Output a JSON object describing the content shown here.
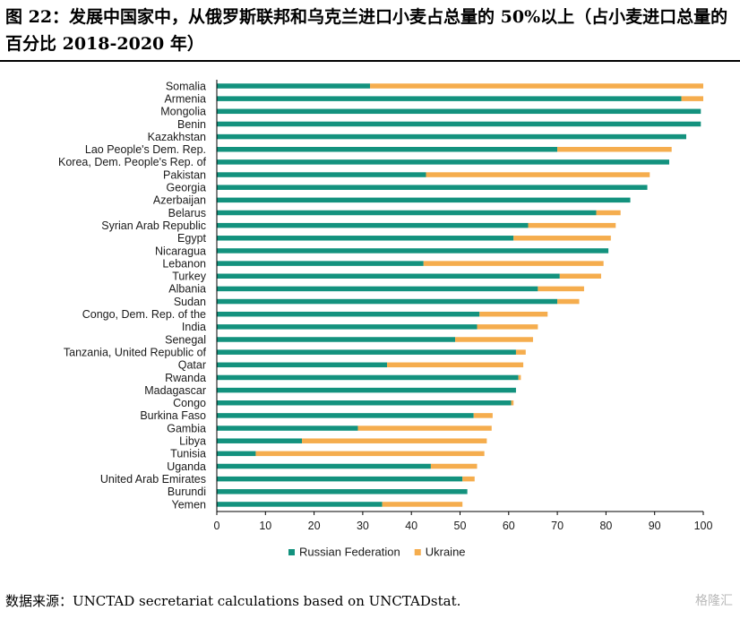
{
  "caption": "图 22：发展中国家中，从俄罗斯联邦和乌克兰进口小麦占总量的 50%以上（占小麦进口总量的百分比 2018-2020 年）",
  "source": "数据来源：UNCTAD secretariat calculations based on UNCTADstat.",
  "watermark": "格隆汇",
  "chart_data": {
    "type": "bar",
    "orientation": "horizontal",
    "stacked": true,
    "categories": [
      "Somalia",
      "Armenia",
      "Mongolia",
      "Benin",
      "Kazakhstan",
      "Lao People's Dem. Rep.",
      "Korea, Dem. People's Rep. of",
      "Pakistan",
      "Georgia",
      "Azerbaijan",
      "Belarus",
      "Syrian Arab Republic",
      "Egypt",
      "Nicaragua",
      "Lebanon",
      "Turkey",
      "Albania",
      "Sudan",
      "Congo, Dem. Rep. of the",
      "India",
      "Senegal",
      "Tanzania, United Republic of",
      "Qatar",
      "Rwanda",
      "Madagascar",
      "Congo",
      "Burkina Faso",
      "Gambia",
      "Libya",
      "Tunisia",
      "Uganda",
      "United Arab Emirates",
      "Burundi",
      "Yemen"
    ],
    "series": [
      {
        "name": "Russian Federation",
        "color": "#13927e",
        "values": [
          31.5,
          95.5,
          99.5,
          99.5,
          96.5,
          70,
          93,
          43,
          88.5,
          85,
          78,
          64,
          61,
          80.5,
          42.5,
          70.5,
          66,
          70,
          54,
          53.5,
          49,
          61.5,
          35,
          62,
          61.5,
          60.5,
          52.8,
          29,
          17.5,
          8,
          44,
          50.5,
          51.5,
          34
        ]
      },
      {
        "name": "Ukraine",
        "color": "#f5ad4e",
        "values": [
          68.5,
          4.5,
          0,
          0,
          0,
          23.5,
          0,
          46,
          0,
          0,
          5,
          18,
          20,
          0,
          37,
          8.5,
          9.5,
          4.5,
          14,
          12.5,
          16,
          2,
          28,
          0.5,
          0,
          0.5,
          3.9,
          27.5,
          38,
          47,
          9.5,
          2.5,
          0,
          16.5
        ]
      }
    ],
    "xlim": [
      0,
      100
    ],
    "xticks": [
      0,
      10,
      20,
      30,
      40,
      50,
      60,
      70,
      80,
      90,
      100
    ],
    "legend_position": "bottom",
    "grid": false
  }
}
